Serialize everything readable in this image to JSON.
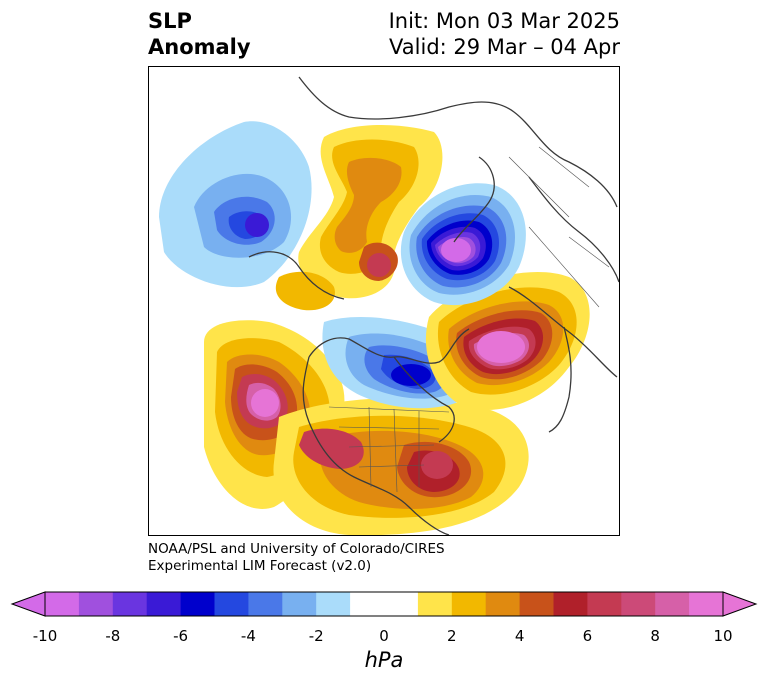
{
  "title": {
    "left_line1": "SLP",
    "left_line2": "Anomaly",
    "right_line1": "Init: Mon 03 Mar 2025",
    "right_line2": "Valid: 29 Mar – 04 Apr"
  },
  "credit": {
    "line1": "NOAA/PSL and University of Colorado/CIRES",
    "line2": "Experimental LIM Forecast (v2.0)"
  },
  "colorbar": {
    "unit": "hPa",
    "ticks": [
      "-10",
      "-8",
      "-6",
      "-4",
      "-2",
      "0",
      "2",
      "4",
      "6",
      "8",
      "10"
    ],
    "colors": [
      "#d36ae8",
      "#a050de",
      "#6a35e0",
      "#3a1ad6",
      "#0000cc",
      "#2448e0",
      "#4a78e8",
      "#78b0f0",
      "#aadcfa",
      "#ffffff",
      "#ffffff",
      "#ffe44a",
      "#f2b800",
      "#e08a10",
      "#c8521a",
      "#b0202a",
      "#c43a52",
      "#cc4a78",
      "#d660a8",
      "#e674d6"
    ],
    "under_color": "#d36ae8",
    "over_color": "#e674d6"
  },
  "map": {
    "projection": "polar stereographic (Northern Hemisphere)",
    "field": "SLP anomaly",
    "features": [
      {
        "name": "north-pacific-low",
        "sign": "negative",
        "peak_hpa": -6
      },
      {
        "name": "eastern-pacific-high",
        "sign": "positive",
        "peak_hpa": 10
      },
      {
        "name": "eastern-us-high",
        "sign": "positive",
        "peak_hpa": 8
      },
      {
        "name": "hudson-bay-low",
        "sign": "negative",
        "peak_hpa": -6
      },
      {
        "name": "north-atlantic-high",
        "sign": "positive",
        "peak_hpa": 10
      },
      {
        "name": "siberia-low",
        "sign": "negative",
        "peak_hpa": -10
      },
      {
        "name": "arctic-high",
        "sign": "positive",
        "peak_hpa": 8
      }
    ]
  }
}
